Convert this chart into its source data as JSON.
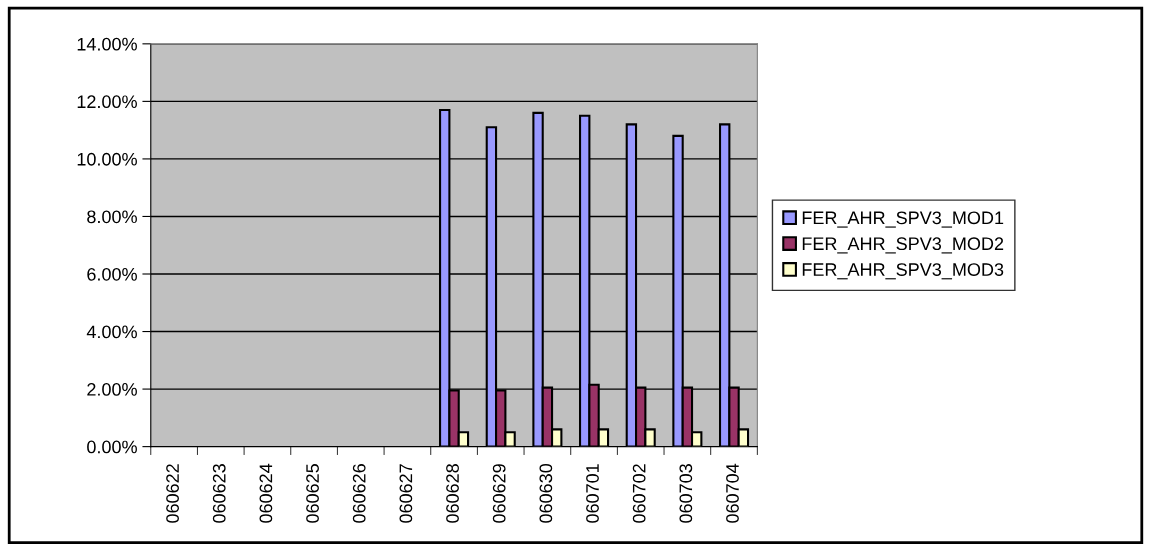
{
  "chart_data": {
    "type": "bar",
    "categories": [
      "060622",
      "060623",
      "060624",
      "060625",
      "060626",
      "060627",
      "060628",
      "060629",
      "060630",
      "060701",
      "060702",
      "060703",
      "060704"
    ],
    "series": [
      {
        "name": "FER_AHR_SPV3_MOD1",
        "color": "#9999ff",
        "values": [
          null,
          null,
          null,
          null,
          null,
          null,
          11.7,
          11.1,
          11.6,
          11.5,
          11.2,
          10.8,
          11.2
        ]
      },
      {
        "name": "FER_AHR_SPV3_MOD2",
        "color": "#993366",
        "values": [
          null,
          null,
          null,
          null,
          null,
          null,
          1.95,
          1.95,
          2.05,
          2.15,
          2.05,
          2.05,
          2.05
        ]
      },
      {
        "name": "FER_AHR_SPV3_MOD3",
        "color": "#ffffcc",
        "values": [
          null,
          null,
          null,
          null,
          null,
          null,
          0.5,
          0.5,
          0.6,
          0.6,
          0.6,
          0.5,
          0.6
        ]
      }
    ],
    "ylim": [
      0,
      14
    ],
    "yticks": [
      {
        "value": 0,
        "label": "0.00%"
      },
      {
        "value": 2,
        "label": "2.00%"
      },
      {
        "value": 4,
        "label": "4.00%"
      },
      {
        "value": 6,
        "label": "6.00%"
      },
      {
        "value": 8,
        "label": "8.00%"
      },
      {
        "value": 10,
        "label": "10.00%"
      },
      {
        "value": 12,
        "label": "12.00%"
      },
      {
        "value": 14,
        "label": "14.00%"
      }
    ],
    "grid": "y",
    "legend": "right"
  }
}
